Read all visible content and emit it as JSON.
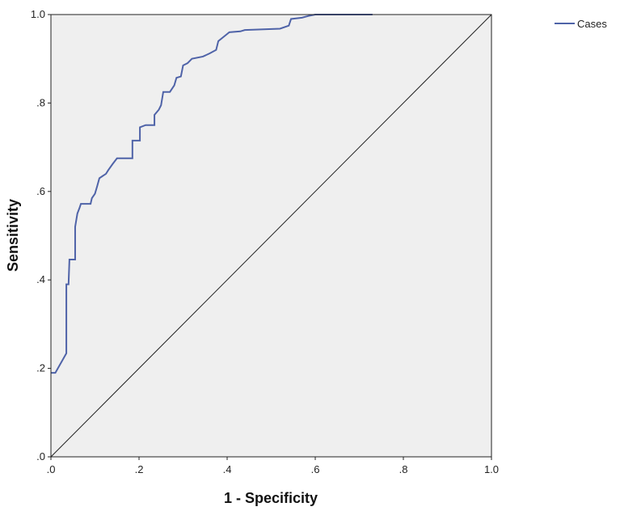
{
  "chart_data": {
    "type": "line",
    "title": "",
    "xlabel": "1 - Specificity",
    "ylabel": "Sensitivity",
    "xlim": [
      0,
      1
    ],
    "ylim": [
      0,
      1
    ],
    "x_ticks": [
      ".0",
      ".2",
      ".4",
      ".6",
      ".8",
      "1.0"
    ],
    "y_ticks": [
      ".0",
      ".2",
      ".4",
      ".6",
      ".8",
      "1.0"
    ],
    "grid": false,
    "legend": {
      "position": "top-right",
      "entries": [
        "Cases"
      ]
    },
    "background_color": "#efefef",
    "series": [
      {
        "name": "Cases",
        "color": "#4f63a8",
        "points": [
          [
            0.0,
            0.19
          ],
          [
            0.01,
            0.19
          ],
          [
            0.035,
            0.234
          ],
          [
            0.035,
            0.39
          ],
          [
            0.04,
            0.39
          ],
          [
            0.042,
            0.446
          ],
          [
            0.055,
            0.446
          ],
          [
            0.055,
            0.52
          ],
          [
            0.06,
            0.55
          ],
          [
            0.065,
            0.563
          ],
          [
            0.068,
            0.572
          ],
          [
            0.09,
            0.572
          ],
          [
            0.093,
            0.585
          ],
          [
            0.1,
            0.595
          ],
          [
            0.105,
            0.612
          ],
          [
            0.11,
            0.63
          ],
          [
            0.125,
            0.64
          ],
          [
            0.13,
            0.648
          ],
          [
            0.14,
            0.662
          ],
          [
            0.15,
            0.675
          ],
          [
            0.185,
            0.675
          ],
          [
            0.185,
            0.715
          ],
          [
            0.202,
            0.715
          ],
          [
            0.202,
            0.745
          ],
          [
            0.215,
            0.75
          ],
          [
            0.235,
            0.75
          ],
          [
            0.235,
            0.773
          ],
          [
            0.245,
            0.785
          ],
          [
            0.25,
            0.795
          ],
          [
            0.255,
            0.825
          ],
          [
            0.27,
            0.825
          ],
          [
            0.28,
            0.84
          ],
          [
            0.285,
            0.857
          ],
          [
            0.295,
            0.86
          ],
          [
            0.3,
            0.885
          ],
          [
            0.31,
            0.89
          ],
          [
            0.32,
            0.9
          ],
          [
            0.345,
            0.905
          ],
          [
            0.36,
            0.912
          ],
          [
            0.375,
            0.92
          ],
          [
            0.38,
            0.94
          ],
          [
            0.395,
            0.952
          ],
          [
            0.405,
            0.96
          ],
          [
            0.43,
            0.962
          ],
          [
            0.44,
            0.965
          ],
          [
            0.52,
            0.968
          ],
          [
            0.54,
            0.975
          ],
          [
            0.545,
            0.99
          ],
          [
            0.57,
            0.993
          ],
          [
            0.585,
            0.997
          ],
          [
            0.6,
            1.0
          ],
          [
            0.73,
            1.0
          ]
        ]
      }
    ],
    "reference_line": {
      "from": [
        0,
        0
      ],
      "to": [
        1,
        1
      ],
      "color": "#222222"
    }
  }
}
